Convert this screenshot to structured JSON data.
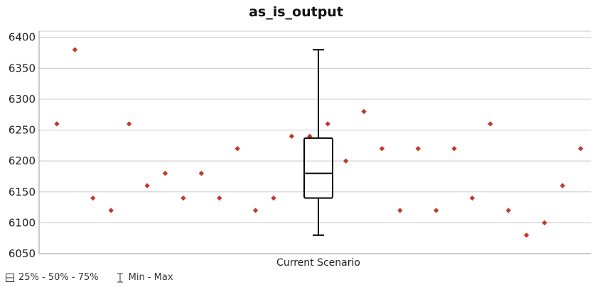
{
  "chart_data": {
    "type": "scatter",
    "title": "as_is_output",
    "xlabel": "",
    "ylabel": "",
    "categories": [
      "Current Scenario"
    ],
    "ylim": [
      6050,
      6410
    ],
    "yticks": [
      6050,
      6100,
      6150,
      6200,
      6250,
      6300,
      6350,
      6400
    ],
    "grid": true,
    "points": [
      6260,
      6380,
      6140,
      6120,
      6260,
      6160,
      6180,
      6140,
      6180,
      6140,
      6220,
      6120,
      6140,
      6240,
      6240,
      6260,
      6200,
      6280,
      6220,
      6120,
      6220,
      6120,
      6220,
      6140,
      6260,
      6120,
      6080,
      6100,
      6160,
      6220
    ],
    "box": {
      "min": 6080,
      "q1": 6140,
      "median": 6180,
      "q3": 6237,
      "max": 6380
    },
    "colors": {
      "points": "#c0392b",
      "box": "#000000",
      "grid": "#c8c8c8"
    },
    "legend": {
      "position": "bottom-left",
      "items": [
        {
          "label": "25% - 50% - 75%",
          "icon": "box-icon"
        },
        {
          "label": "Min - Max",
          "icon": "whisker-icon"
        }
      ]
    }
  }
}
